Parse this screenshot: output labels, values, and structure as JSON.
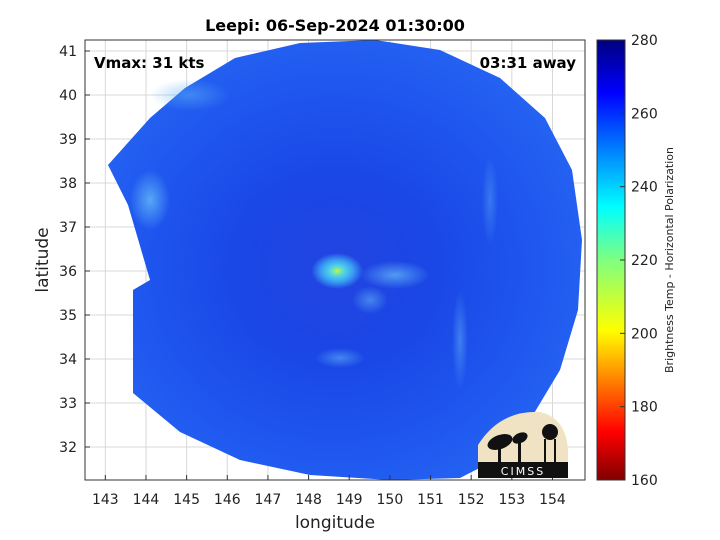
{
  "chart_data": {
    "type": "heatmap",
    "title": "Leepi: 06-Sep-2024 01:30:00",
    "xlabel": "longitude",
    "ylabel": "latitude",
    "xlim": [
      142.5,
      154.8
    ],
    "ylim": [
      31.25,
      41.25
    ],
    "x_ticks": [
      "143",
      "144",
      "145",
      "146",
      "147",
      "148",
      "149",
      "150",
      "151",
      "152",
      "153",
      "154"
    ],
    "y_ticks": [
      "32",
      "33",
      "34",
      "35",
      "36",
      "37",
      "38",
      "39",
      "40",
      "41"
    ],
    "grid": true,
    "annotations": {
      "vmax": "Vmax: 31 kts",
      "away": "03:31 away"
    },
    "storm_center": {
      "lon": 148.9,
      "lat": 36.0
    },
    "colorbar": {
      "label": "Brightness Temp - Horizontal Polarization",
      "range": [
        160,
        280
      ],
      "ticks": [
        "160",
        "180",
        "200",
        "220",
        "240",
        "260",
        "280"
      ]
    }
  },
  "logo": {
    "text": "CIMSS"
  }
}
